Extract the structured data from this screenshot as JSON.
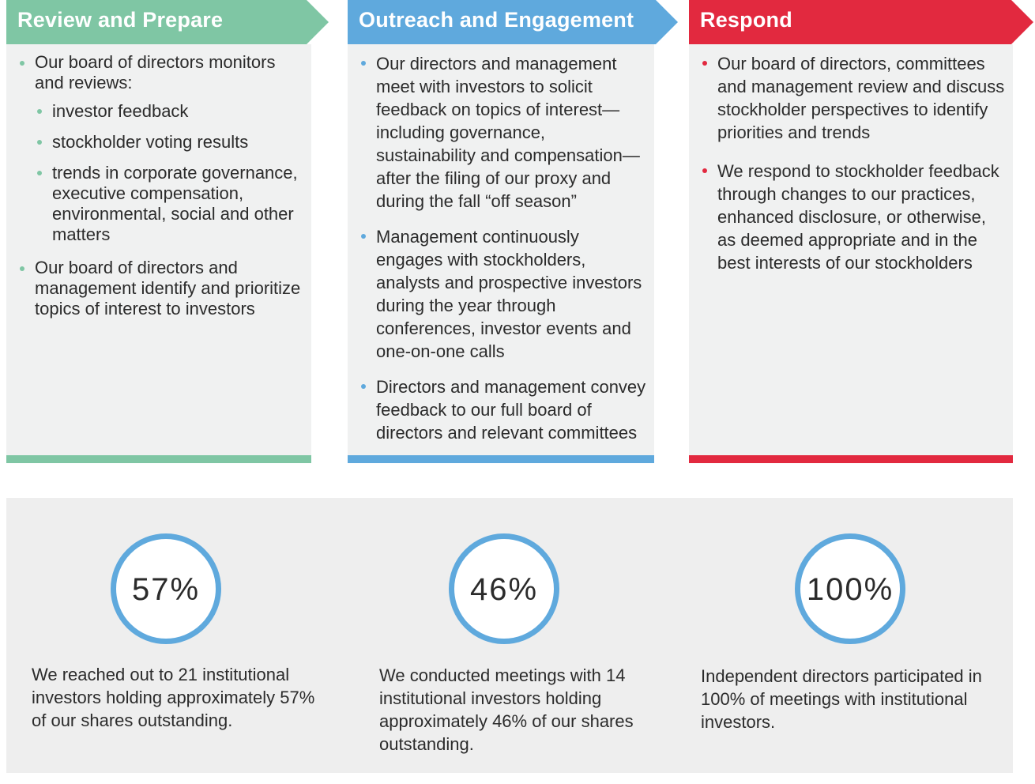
{
  "columns": [
    {
      "title": "Review and Prepare",
      "color": "#7fc6a4",
      "items": [
        {
          "text": "Our board of directors monitors and reviews:",
          "subitems": [
            "investor feedback",
            "stockholder voting results",
            "trends in corporate governance, executive compensation, environmental, social and other matters"
          ]
        },
        {
          "text": "Our board of directors and management identify and prioritize topics of interest to investors"
        }
      ]
    },
    {
      "title": "Outreach and Engagement",
      "color": "#5fa9dd",
      "items": [
        {
          "text": "Our directors and management meet with investors to solicit feedback on topics of interest—including governance, sustainability and compensation—after the filing of our proxy and during the fall “off season”"
        },
        {
          "text": "Management continuously engages with stockholders, analysts and prospective investors during the year through conferences, investor events and one-on-one calls"
        },
        {
          "text": "Directors and management convey feedback to our full board of directors and relevant committees"
        }
      ]
    },
    {
      "title": "Respond",
      "color": "#e2293f",
      "items": [
        {
          "text": "Our board of directors, committees and management review and discuss stockholder perspectives to identify priorities and trends"
        },
        {
          "text": "We respond to stockholder feedback through changes to our practices, enhanced disclosure, or otherwise, as deemed appropriate and in the best interests of our stockholders"
        }
      ]
    }
  ],
  "stats": [
    {
      "value": "57%",
      "text": "We reached out to 21 institutional investors holding approximately 57% of our shares outstanding."
    },
    {
      "value": "46%",
      "text": "We conducted meetings with 14 institutional investors holding approximately 46% of our shares outstanding."
    },
    {
      "value": "100%",
      "text": "Independent directors participated in 100% of meetings with institutional investors."
    }
  ]
}
